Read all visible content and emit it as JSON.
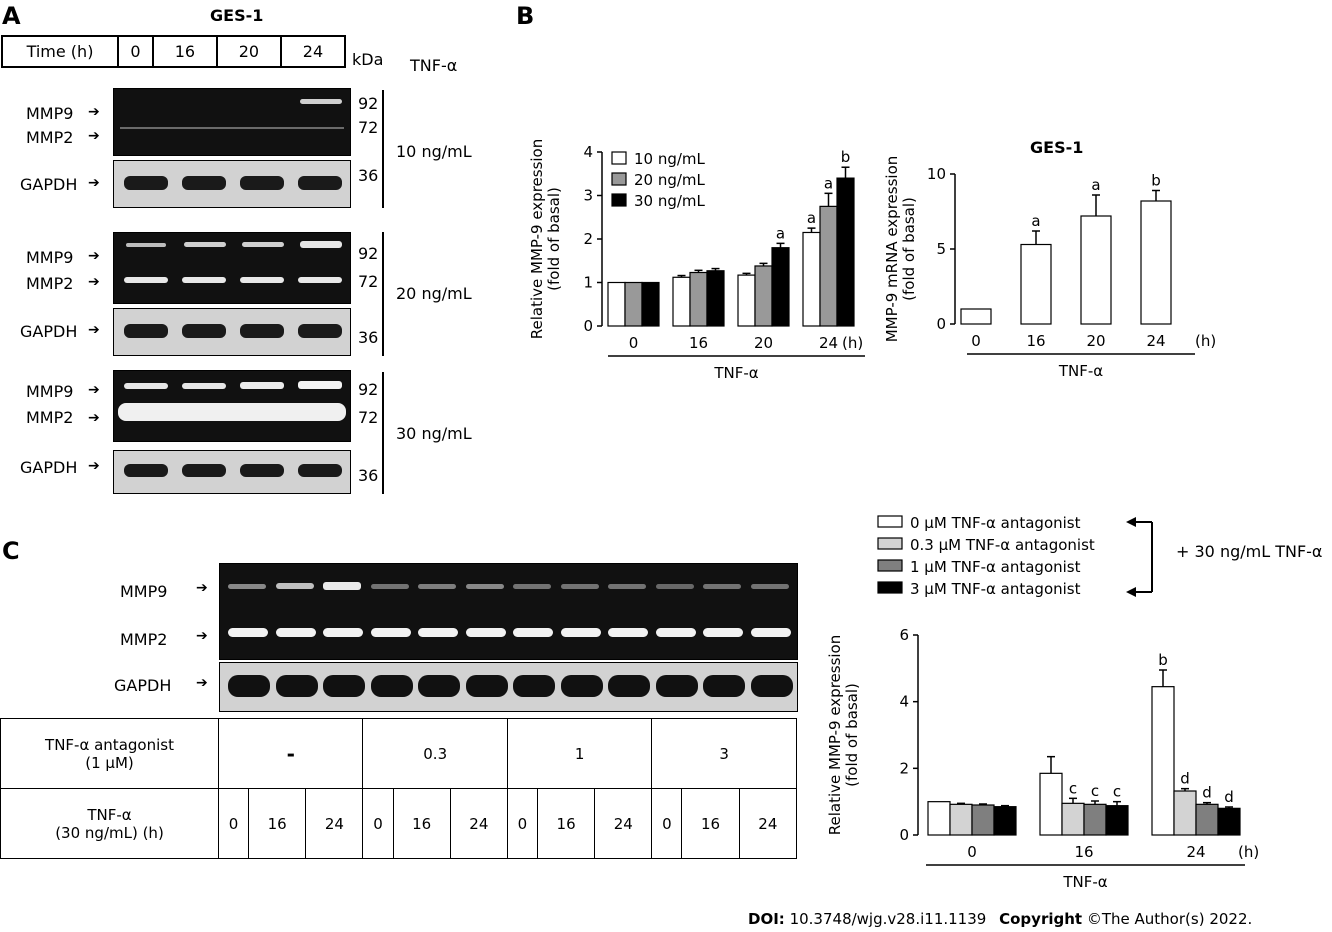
{
  "panelA": {
    "letter": "A",
    "title": "GES-1",
    "time_label": "Time (h)",
    "times": [
      "0",
      "16",
      "20",
      "24"
    ],
    "kda_label": "kDa",
    "tnf_header": "TNF-α",
    "groups": [
      {
        "dose": "10 ng/mL",
        "mmp9": "MMP9",
        "mmp2": "MMP2",
        "gapdh": "GAPDH",
        "k92": "92",
        "k72": "72",
        "k36": "36"
      },
      {
        "dose": "20 ng/mL",
        "mmp9": "MMP9",
        "mmp2": "MMP2",
        "gapdh": "GAPDH",
        "k92": "92",
        "k72": "72",
        "k36": "36"
      },
      {
        "dose": "30 ng/mL",
        "mmp9": "MMP9",
        "mmp2": "MMP2",
        "gapdh": "GAPDH",
        "k92": "92",
        "k72": "72",
        "k36": "36"
      }
    ]
  },
  "panelB": {
    "letter": "B",
    "right_title": "GES-1",
    "x_word": "TNF-α"
  },
  "panelC": {
    "letter": "C",
    "mmp9": "MMP9",
    "mmp2": "MMP2",
    "gapdh": "GAPDH",
    "row1_label_a": "TNF-α antagonist",
    "row1_label_b": "(1 μM)",
    "row1_values": [
      "-",
      "0.3",
      "1",
      "3"
    ],
    "row2_label_a": "TNF-α",
    "row2_label_b": "(30 ng/mL) (h)",
    "row2_values": [
      "0",
      "16",
      "24",
      "0",
      "16",
      "24",
      "0",
      "16",
      "24",
      "0",
      "16",
      "24"
    ],
    "bracket_note": "+ 30 ng/mL TNF-α",
    "x_word": "TNF-α"
  },
  "footer": {
    "doi_label": "DOI:",
    "doi_value": "10.3748/wjg.v28.i11.1139",
    "copyright_label": "Copyright",
    "copyright_value": "©The Author(s) 2022."
  },
  "chart_data": [
    {
      "type": "bar",
      "id": "B-left",
      "ylabel": "Relative MMP-9 expression (fold of basal)",
      "xlabel": "TNF-α",
      "x_unit": "(h)",
      "categories": [
        "0",
        "16",
        "20",
        "24"
      ],
      "ylim": [
        0,
        4
      ],
      "yticks": [
        "0",
        "1",
        "2",
        "3",
        "4"
      ],
      "series": [
        {
          "name": "10 ng/mL",
          "color": "#ffffff",
          "values": [
            1.0,
            1.12,
            1.17,
            2.15
          ],
          "errors": [
            0,
            0.04,
            0.04,
            0.1
          ],
          "labels": [
            "",
            "",
            "",
            "a"
          ]
        },
        {
          "name": "20 ng/mL",
          "color": "#999999",
          "values": [
            1.0,
            1.23,
            1.38,
            2.75
          ],
          "errors": [
            0,
            0.05,
            0.06,
            0.3
          ],
          "labels": [
            "",
            "",
            "",
            "a"
          ]
        },
        {
          "name": "30 ng/mL",
          "color": "#000000",
          "values": [
            1.0,
            1.27,
            1.8,
            3.4
          ],
          "errors": [
            0,
            0.05,
            0.1,
            0.25
          ],
          "labels": [
            "",
            "",
            "a",
            "b"
          ]
        }
      ]
    },
    {
      "type": "bar",
      "id": "B-right",
      "title": "GES-1",
      "ylabel": "MMP-9 mRNA expression (fold of basal)",
      "xlabel": "TNF-α",
      "x_unit": "(h)",
      "categories": [
        "0",
        "16",
        "20",
        "24"
      ],
      "ylim": [
        0,
        10
      ],
      "yticks": [
        "0",
        "5",
        "10"
      ],
      "series": [
        {
          "name": "",
          "color": "#ffffff",
          "values": [
            1.0,
            5.3,
            7.2,
            8.2
          ],
          "errors": [
            0,
            0.9,
            1.4,
            0.7
          ],
          "labels": [
            "",
            "a",
            "a",
            "b"
          ]
        }
      ]
    },
    {
      "type": "bar",
      "id": "C-right",
      "ylabel": "Relative MMP-9 expression (fold of basal)",
      "xlabel": "TNF-α",
      "x_unit": "(h)",
      "categories": [
        "0",
        "16",
        "24"
      ],
      "ylim": [
        0,
        6
      ],
      "yticks": [
        "0",
        "2",
        "4",
        "6"
      ],
      "series": [
        {
          "name": "0 μM TNF-α antagonist",
          "color": "#ffffff",
          "values": [
            1.0,
            1.85,
            4.45
          ],
          "errors": [
            0,
            0.5,
            0.5
          ],
          "labels": [
            "",
            "",
            "b"
          ]
        },
        {
          "name": "0.3 μM TNF-α antagonist",
          "color": "#d3d3d3",
          "values": [
            0.92,
            0.95,
            1.32
          ],
          "errors": [
            0.03,
            0.15,
            0.07
          ],
          "labels": [
            "",
            "c",
            "d"
          ]
        },
        {
          "name": "1 μM TNF-α antagonist",
          "color": "#7f7f7f",
          "values": [
            0.9,
            0.92,
            0.92
          ],
          "errors": [
            0.03,
            0.1,
            0.05
          ],
          "labels": [
            "",
            "c",
            "d"
          ]
        },
        {
          "name": "3 μM TNF-α antagonist",
          "color": "#000000",
          "values": [
            0.85,
            0.88,
            0.8
          ],
          "errors": [
            0.03,
            0.12,
            0.04
          ],
          "labels": [
            "",
            "c",
            "d"
          ]
        }
      ]
    }
  ]
}
